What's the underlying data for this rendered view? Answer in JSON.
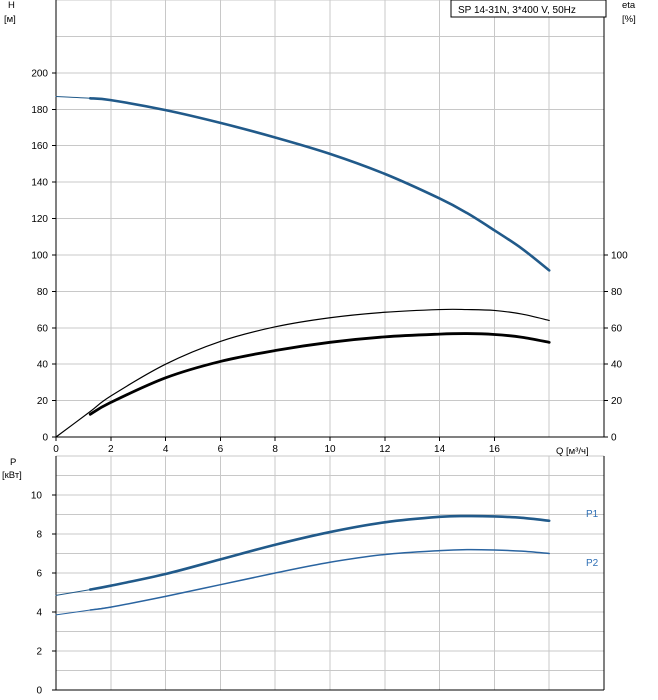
{
  "title": "SP 14-31N, 3*400 V, 50Hz",
  "colors": {
    "head": "#215a8a",
    "eta": "#000000",
    "p1": "#215a8a",
    "p2": "#2a64a0",
    "label": "#2e6fb5"
  },
  "chart_data": [
    {
      "type": "line",
      "title": "SP 14-31N, 3*400 V, 50Hz",
      "x_axis": {
        "unit_label": "Q [м³/ч]",
        "range": [
          0,
          20
        ],
        "ticks": [
          0,
          2,
          4,
          6,
          8,
          10,
          12,
          14,
          16
        ]
      },
      "y_left": {
        "label": "H",
        "unit_label": "[м]",
        "range": [
          0,
          240
        ],
        "ticks": [
          0,
          20,
          40,
          60,
          80,
          100,
          120,
          140,
          160,
          180,
          200
        ]
      },
      "y_right": {
        "label": "eta",
        "unit_label": "[%]",
        "range": [
          0,
          100
        ],
        "ticks": [
          0,
          20,
          40,
          60,
          80,
          100
        ]
      },
      "grid": true,
      "series": [
        {
          "key": "head",
          "axis": "left",
          "x": [
            0,
            1.25,
            2,
            4,
            6,
            8,
            10,
            12,
            14,
            15,
            16,
            17,
            18
          ],
          "y": [
            187,
            186,
            185,
            179.5,
            172.5,
            164.5,
            155.5,
            144.5,
            131,
            123,
            113.5,
            103.5,
            91.5
          ]
        },
        {
          "key": "eta_thin",
          "axis": "left",
          "x": [
            0,
            1.25,
            2,
            4,
            6,
            8,
            10,
            12,
            14,
            15,
            16,
            17,
            18
          ],
          "y": [
            0,
            14,
            22.5,
            40,
            52.5,
            60.5,
            65.5,
            68.5,
            70,
            70,
            69.5,
            67.5,
            64
          ]
        },
        {
          "key": "eta_thick",
          "axis": "left",
          "x": [
            1.25,
            2,
            4,
            6,
            8,
            10,
            12,
            14,
            15,
            16,
            17,
            18
          ],
          "y": [
            12.5,
            19,
            32.5,
            41.5,
            47.5,
            52,
            55,
            56.5,
            56.8,
            56.3,
            54.8,
            52
          ]
        }
      ]
    },
    {
      "type": "line",
      "x_axis": {
        "range": [
          0,
          20
        ],
        "ticks": [
          0,
          2,
          4,
          6,
          8,
          10,
          12,
          14,
          16
        ]
      },
      "y_left": {
        "label": "P",
        "unit_label": "[кВт]",
        "range": [
          0,
          10
        ],
        "ticks": [
          0,
          2,
          4,
          6,
          8,
          10
        ]
      },
      "grid": true,
      "series": [
        {
          "key": "p1",
          "name": "P1",
          "axis": "left",
          "x": [
            0,
            1.25,
            2,
            4,
            6,
            8,
            10,
            12,
            14,
            15,
            16,
            17,
            18
          ],
          "y": [
            4.85,
            5.15,
            5.35,
            5.95,
            6.7,
            7.45,
            8.1,
            8.6,
            8.88,
            8.92,
            8.9,
            8.83,
            8.68
          ]
        },
        {
          "key": "p2",
          "name": "P2",
          "axis": "left",
          "x": [
            0,
            1.25,
            2,
            4,
            6,
            8,
            10,
            12,
            14,
            15,
            16,
            17,
            18
          ],
          "y": [
            3.85,
            4.1,
            4.25,
            4.8,
            5.4,
            6.0,
            6.55,
            6.95,
            7.15,
            7.2,
            7.18,
            7.12,
            7.0
          ]
        }
      ]
    }
  ]
}
